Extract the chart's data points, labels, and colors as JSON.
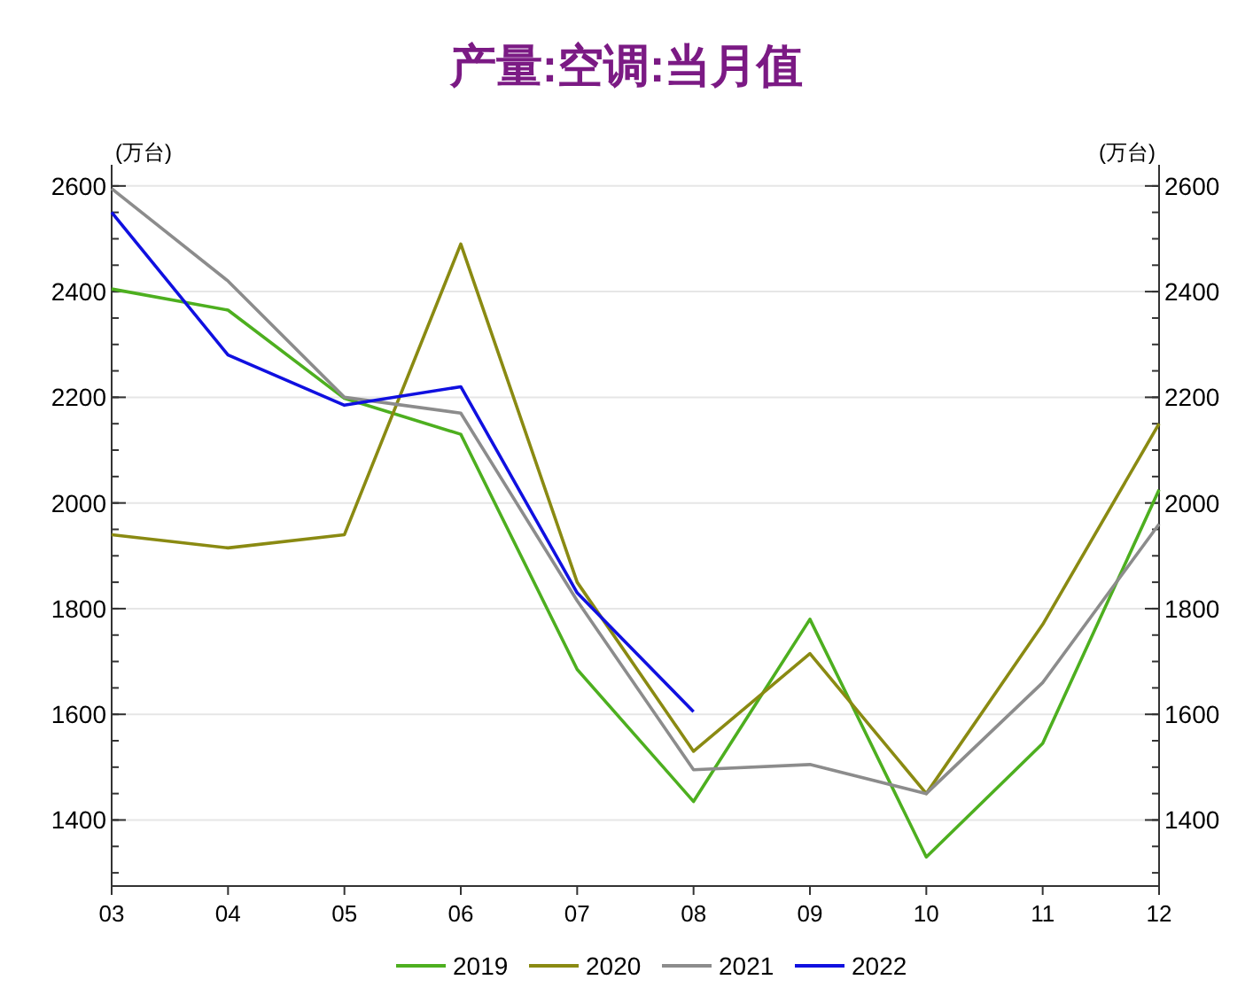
{
  "chart_data": {
    "type": "line",
    "title": "产量:空调:当月值",
    "ylabel": "(万台)",
    "y2label": "(万台)",
    "categories": [
      "03",
      "04",
      "05",
      "06",
      "07",
      "08",
      "09",
      "10",
      "11",
      "12"
    ],
    "ylim": [
      1275,
      2640
    ],
    "yticks": [
      1400,
      1600,
      1800,
      2000,
      2200,
      2400,
      2600
    ],
    "y2lim": [
      1275,
      2640
    ],
    "y2ticks": [
      1400,
      1600,
      1800,
      2000,
      2200,
      2400,
      2600
    ],
    "grid": "y",
    "legend": "bottom",
    "line_style": "solid",
    "series": [
      {
        "name": "2019",
        "color": "#4daf1f",
        "values": [
          2405,
          2365,
          2198,
          2130,
          1685,
          1435,
          1780,
          1330,
          1545,
          2025
        ]
      },
      {
        "name": "2020",
        "color": "#8a8a12",
        "values": [
          1940,
          1915,
          1940,
          2490,
          1850,
          1530,
          1715,
          1450,
          1770,
          2150
        ]
      },
      {
        "name": "2021",
        "color": "#8c8c8c",
        "values": [
          2595,
          2420,
          2200,
          2170,
          1815,
          1495,
          1505,
          1450,
          1660,
          1960
        ]
      },
      {
        "name": "2022",
        "color": "#1010e0",
        "values": [
          2550,
          2280,
          2185,
          2220,
          1830,
          1605,
          null,
          null,
          null,
          null
        ]
      }
    ]
  }
}
